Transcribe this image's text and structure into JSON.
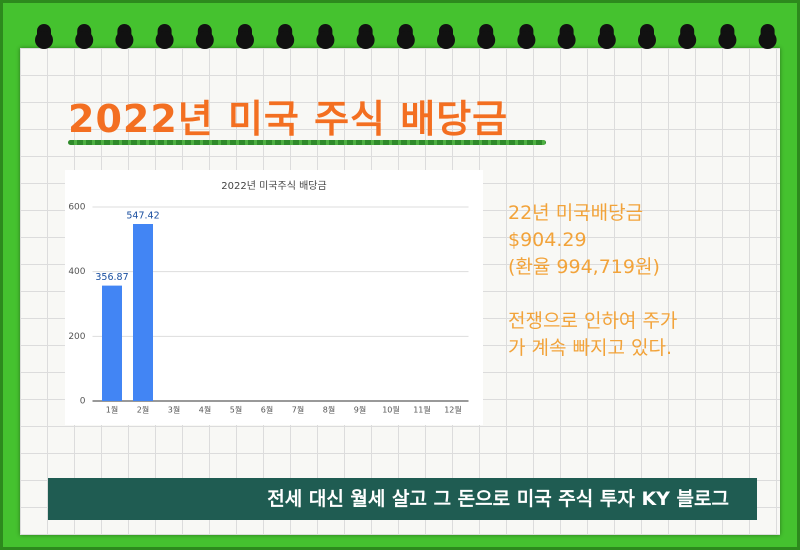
{
  "header": {
    "title": "2022년 미국 주식 배당금"
  },
  "chart_data": {
    "type": "bar",
    "title": "2022년 미국주식 배당금",
    "categories": [
      "1월",
      "2월",
      "3월",
      "4월",
      "5월",
      "6월",
      "7월",
      "8월",
      "9월",
      "10월",
      "11월",
      "12월"
    ],
    "values": [
      356.87,
      547.42,
      null,
      null,
      null,
      null,
      null,
      null,
      null,
      null,
      null,
      null
    ],
    "color": "#4285f4",
    "ylim": [
      0,
      600
    ],
    "yticks": [
      0,
      200,
      400,
      600
    ],
    "grid": true
  },
  "side_text": [
    "22년 미국배당금",
    "$904.29",
    "(환율 994,719원)",
    "",
    "전쟁으로 인하여 주가",
    "가 계속 빠지고 있다."
  ],
  "footer": {
    "text": "전세 대신 월세 살고 그 돈으로 미국 주식 투자 KY 블로그"
  }
}
